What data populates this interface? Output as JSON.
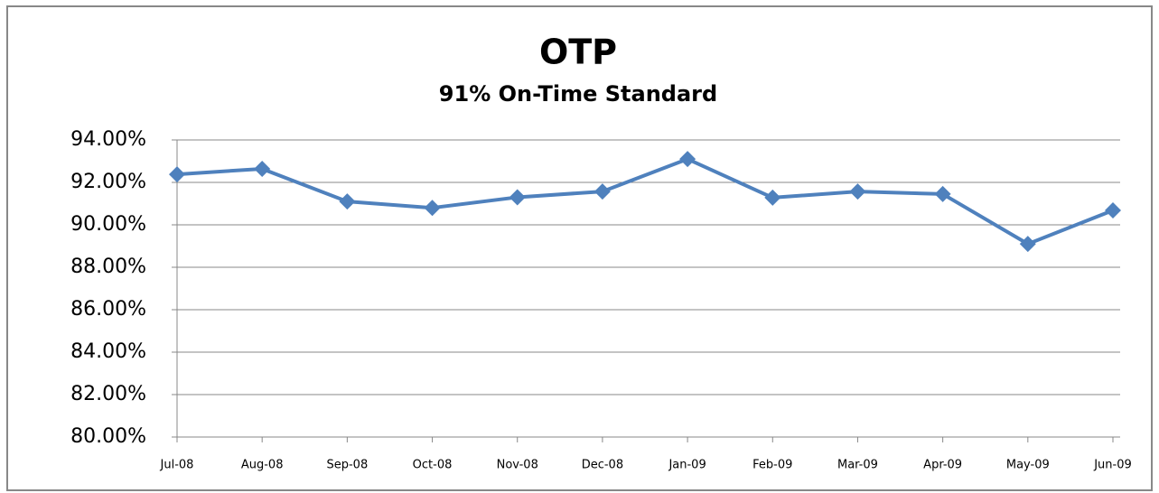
{
  "chart_data": {
    "type": "line",
    "title": "OTP",
    "subtitle": "91% On-Time Standard",
    "categories": [
      "Jul-08",
      "Aug-08",
      "Sep-08",
      "Oct-08",
      "Nov-08",
      "Dec-08",
      "Jan-09",
      "Feb-09",
      "Mar-09",
      "Apr-09",
      "May-09",
      "Jun-09"
    ],
    "series": [
      {
        "color": "#4f81bd",
        "values": [
          92.38,
          92.64,
          91.1,
          90.8,
          91.3,
          91.57,
          93.1,
          91.28,
          91.57,
          91.45,
          89.1,
          90.68
        ]
      }
    ],
    "ylim": [
      80,
      94
    ],
    "yticks": [
      {
        "value": 80,
        "label": "80.00%"
      },
      {
        "value": 82,
        "label": "82.00%"
      },
      {
        "value": 84,
        "label": "84.00%"
      },
      {
        "value": 86,
        "label": "86.00%"
      },
      {
        "value": 88,
        "label": "88.00%"
      },
      {
        "value": 90,
        "label": "90.00%"
      },
      {
        "value": 92,
        "label": "92.00%"
      },
      {
        "value": 94,
        "label": "94.00%"
      }
    ],
    "grid": true
  }
}
